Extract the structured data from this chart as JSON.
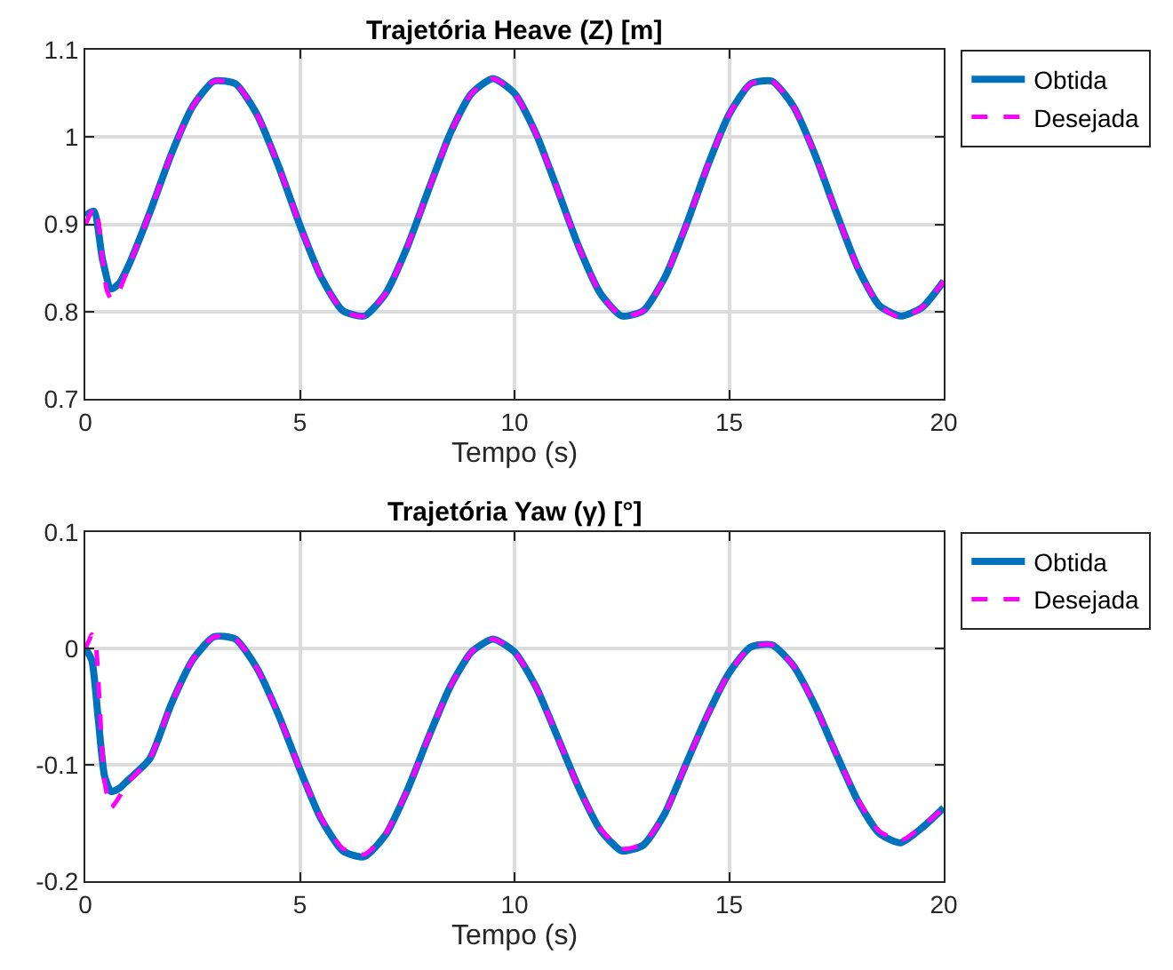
{
  "chart_data": [
    {
      "type": "line",
      "title": "Trajetória Heave (Z) [m]",
      "xlabel": "Tempo (s)",
      "xlim": [
        0,
        20
      ],
      "xticks": [
        0,
        5,
        10,
        15,
        20
      ],
      "ylim": [
        0.7,
        1.1
      ],
      "yticks": [
        0.7,
        0.8,
        0.9,
        {
          "value": 1,
          "label": "1"
        },
        1.1
      ],
      "grid": true,
      "legend": "top right",
      "series": [
        {
          "name": "Obtida",
          "color": "#0072bd",
          "line_style": "solid",
          "x": [
            0,
            0.2,
            0.4,
            0.6,
            0.8,
            1.0,
            1.5,
            2.0,
            2.5,
            3.0,
            3.5,
            4.0,
            4.5,
            5.0,
            5.5,
            6.0,
            6.5,
            7.0,
            7.5,
            8.0,
            8.5,
            9.0,
            9.5,
            10.0,
            10.5,
            11.0,
            11.5,
            12.0,
            12.5,
            13.0,
            13.5,
            14.0,
            14.5,
            15.0,
            15.5,
            16.0,
            16.5,
            17.0,
            17.5,
            18.0,
            18.5,
            19.0,
            19.5,
            20.0
          ],
          "values": [
            0.91,
            0.915,
            0.86,
            0.826,
            0.833,
            0.852,
            0.913,
            0.98,
            1.035,
            1.064,
            1.061,
            1.026,
            0.967,
            0.899,
            0.839,
            0.801,
            0.795,
            0.821,
            0.874,
            0.94,
            1.004,
            1.05,
            1.067,
            1.05,
            1.004,
            0.94,
            0.874,
            0.821,
            0.795,
            0.801,
            0.839,
            0.899,
            0.967,
            1.026,
            1.061,
            1.064,
            1.035,
            0.98,
            0.913,
            0.85,
            0.807,
            0.795,
            0.805,
            0.835
          ]
        },
        {
          "name": "Desejada",
          "color": "#ff00ff",
          "line_style": "dashed",
          "x": [
            0,
            0.1,
            0.2,
            0.3,
            0.4,
            0.5,
            0.6,
            0.7,
            0.8,
            1.0,
            1.5,
            2.0,
            2.5,
            3.0,
            3.5,
            4.0,
            4.5,
            5.0,
            5.5,
            6.0,
            6.5,
            7.0,
            7.5,
            8.0,
            8.5,
            9.0,
            9.5,
            10.0,
            10.5,
            11.0,
            11.5,
            12.0,
            12.5,
            13.0,
            13.5,
            14.0,
            14.5,
            15.0,
            15.5,
            16.0,
            16.5,
            17.0,
            17.5,
            18.0,
            18.5,
            19.0,
            19.5,
            20.0
          ],
          "values": [
            0.9,
            0.91,
            0.92,
            0.905,
            0.86,
            0.825,
            0.815,
            0.817,
            0.825,
            0.85,
            0.913,
            0.98,
            1.035,
            1.064,
            1.061,
            1.026,
            0.967,
            0.899,
            0.839,
            0.801,
            0.795,
            0.821,
            0.874,
            0.94,
            1.004,
            1.05,
            1.067,
            1.05,
            1.004,
            0.94,
            0.874,
            0.821,
            0.795,
            0.801,
            0.839,
            0.899,
            0.967,
            1.026,
            1.061,
            1.064,
            1.035,
            0.98,
            0.913,
            0.85,
            0.807,
            0.793,
            0.805,
            0.835
          ]
        }
      ]
    },
    {
      "type": "line",
      "title": "Trajetória Yaw (γ) [°]",
      "xlabel": "Tempo (s)",
      "xlim": [
        0,
        20
      ],
      "xticks": [
        0,
        5,
        10,
        15,
        20
      ],
      "ylim": [
        -0.2,
        0.1
      ],
      "yticks": [
        -0.2,
        -0.1,
        0,
        0.1
      ],
      "grid": true,
      "legend": "top right",
      "series": [
        {
          "name": "Obtida",
          "color": "#0072bd",
          "line_style": "solid",
          "x": [
            0,
            0.15,
            0.3,
            0.45,
            0.6,
            0.8,
            1.0,
            1.5,
            2.0,
            2.5,
            3.0,
            3.5,
            4.0,
            4.5,
            5.0,
            5.5,
            6.0,
            6.5,
            7.0,
            7.5,
            8.0,
            8.5,
            9.0,
            9.5,
            10.0,
            10.5,
            11.0,
            11.5,
            12.0,
            12.5,
            13.0,
            13.5,
            14.0,
            14.5,
            15.0,
            15.5,
            16.0,
            16.5,
            17.0,
            17.5,
            18.0,
            18.5,
            19.0,
            19.5,
            20.0
          ],
          "values": [
            0,
            -0.01,
            -0.06,
            -0.11,
            -0.123,
            -0.12,
            -0.113,
            -0.095,
            -0.048,
            -0.01,
            0.01,
            0.008,
            -0.017,
            -0.057,
            -0.104,
            -0.147,
            -0.174,
            -0.179,
            -0.16,
            -0.122,
            -0.076,
            -0.033,
            -0.003,
            0.008,
            -0.003,
            -0.033,
            -0.076,
            -0.12,
            -0.156,
            -0.174,
            -0.169,
            -0.142,
            -0.099,
            -0.057,
            -0.021,
            0.001,
            0.003,
            -0.015,
            -0.049,
            -0.091,
            -0.131,
            -0.159,
            -0.167,
            -0.154,
            -0.137
          ]
        },
        {
          "name": "Desejada",
          "color": "#ff00ff",
          "line_style": "dashed",
          "x": [
            0,
            0.1,
            0.15,
            0.25,
            0.35,
            0.45,
            0.6,
            0.75,
            1.0,
            1.5,
            2.0,
            2.5,
            3.0,
            3.5,
            4.0,
            4.5,
            5.0,
            5.5,
            6.0,
            6.5,
            7.0,
            7.5,
            8.0,
            8.5,
            9.0,
            9.5,
            10.0,
            10.5,
            11.0,
            11.5,
            12.0,
            12.5,
            13.0,
            13.5,
            14.0,
            14.5,
            15.0,
            15.5,
            16.0,
            16.5,
            17.0,
            17.5,
            18.0,
            18.5,
            19.0,
            19.5,
            20.0
          ],
          "values": [
            0,
            0.008,
            0.012,
            0,
            -0.06,
            -0.115,
            -0.137,
            -0.13,
            -0.115,
            -0.095,
            -0.048,
            -0.01,
            0.01,
            0.008,
            -0.017,
            -0.057,
            -0.104,
            -0.146,
            -0.172,
            -0.177,
            -0.159,
            -0.122,
            -0.076,
            -0.033,
            -0.003,
            0.008,
            -0.003,
            -0.033,
            -0.076,
            -0.12,
            -0.155,
            -0.172,
            -0.168,
            -0.142,
            -0.099,
            -0.057,
            -0.021,
            0.001,
            0.003,
            -0.015,
            -0.049,
            -0.091,
            -0.13,
            -0.157,
            -0.165,
            -0.153,
            -0.137
          ]
        }
      ]
    }
  ]
}
